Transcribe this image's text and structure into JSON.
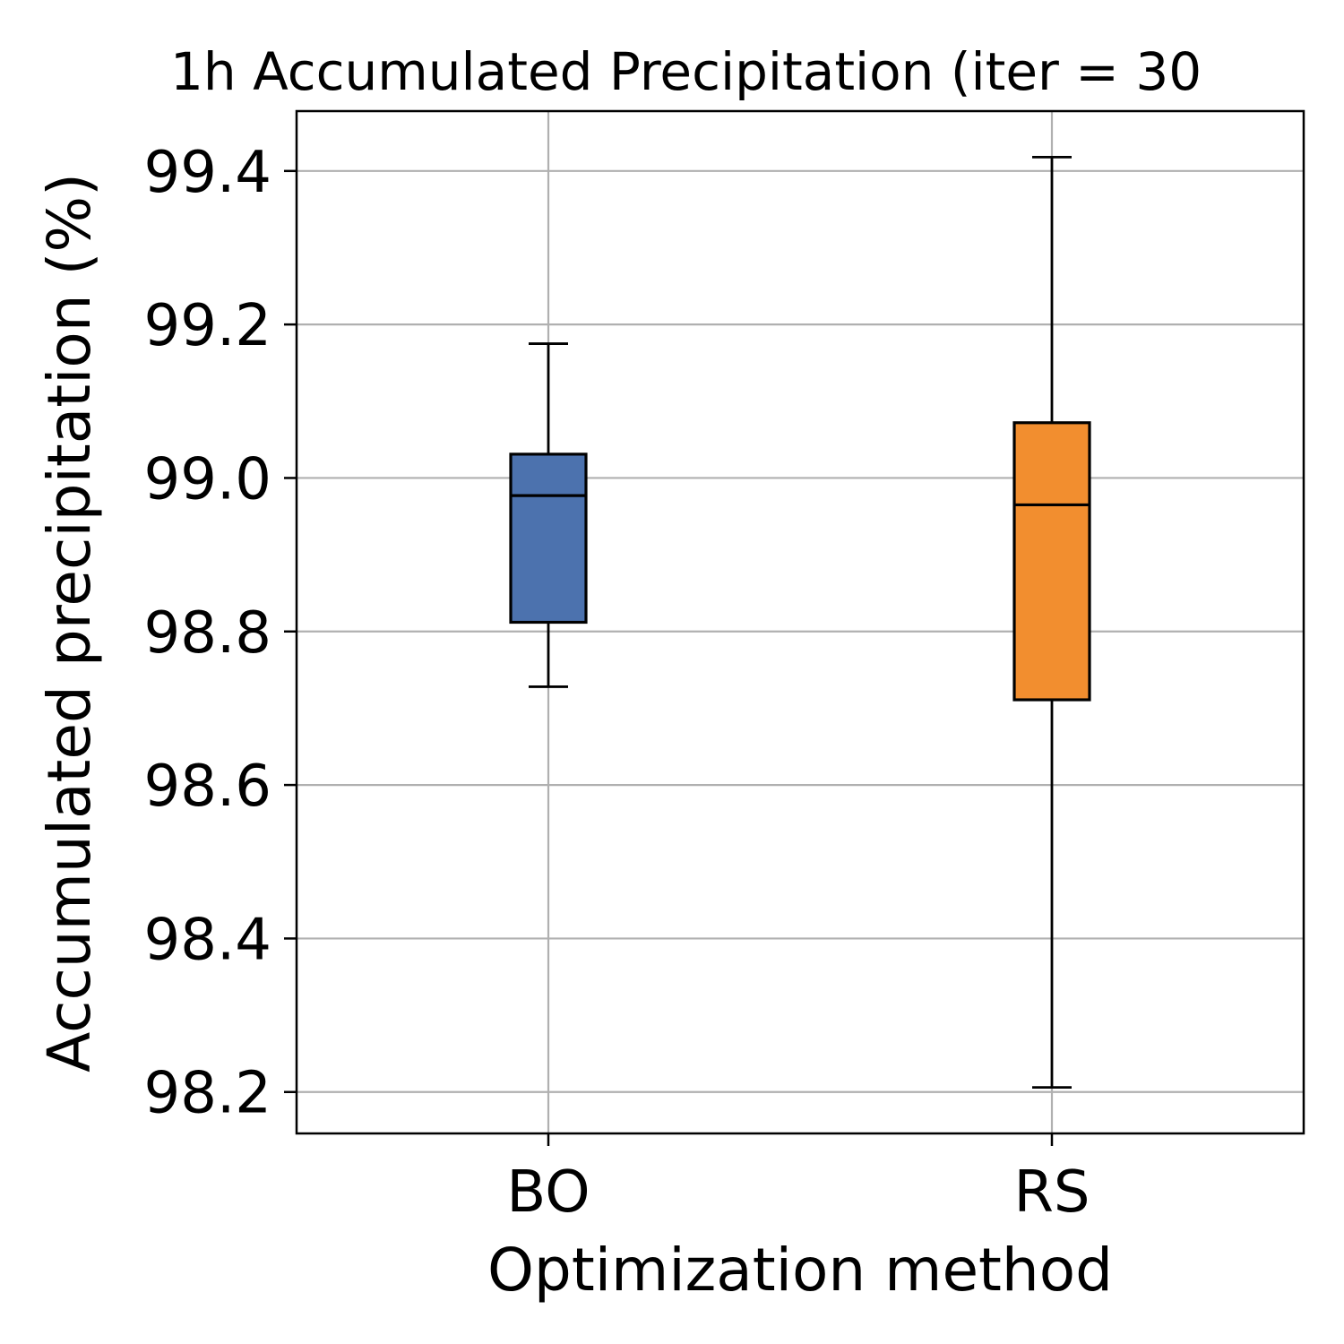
{
  "chart_data": {
    "type": "box",
    "title": "1h Accumulated Precipitation (iter = 30",
    "xlabel": "Optimization method",
    "ylabel": "Accumulated precipitation (%)",
    "categories": [
      "BO",
      "RS"
    ],
    "ylim": [
      98.146,
      99.478
    ],
    "yticks": [
      98.2,
      98.4,
      98.6,
      98.8,
      99.0,
      99.2,
      99.4
    ],
    "ytick_labels": [
      "98.2",
      "98.4",
      "98.6",
      "98.8",
      "99.0",
      "99.2",
      "99.4"
    ],
    "grid": true,
    "boxes": [
      {
        "category": "BO",
        "whisker_low": 98.728,
        "q1": 98.812,
        "median": 98.977,
        "q3": 99.031,
        "whisker_high": 99.175,
        "color": "#4c72ae"
      },
      {
        "category": "RS",
        "whisker_low": 98.206,
        "q1": 98.711,
        "median": 98.965,
        "q3": 99.072,
        "whisker_high": 99.418,
        "color": "#f28e2f"
      }
    ]
  }
}
